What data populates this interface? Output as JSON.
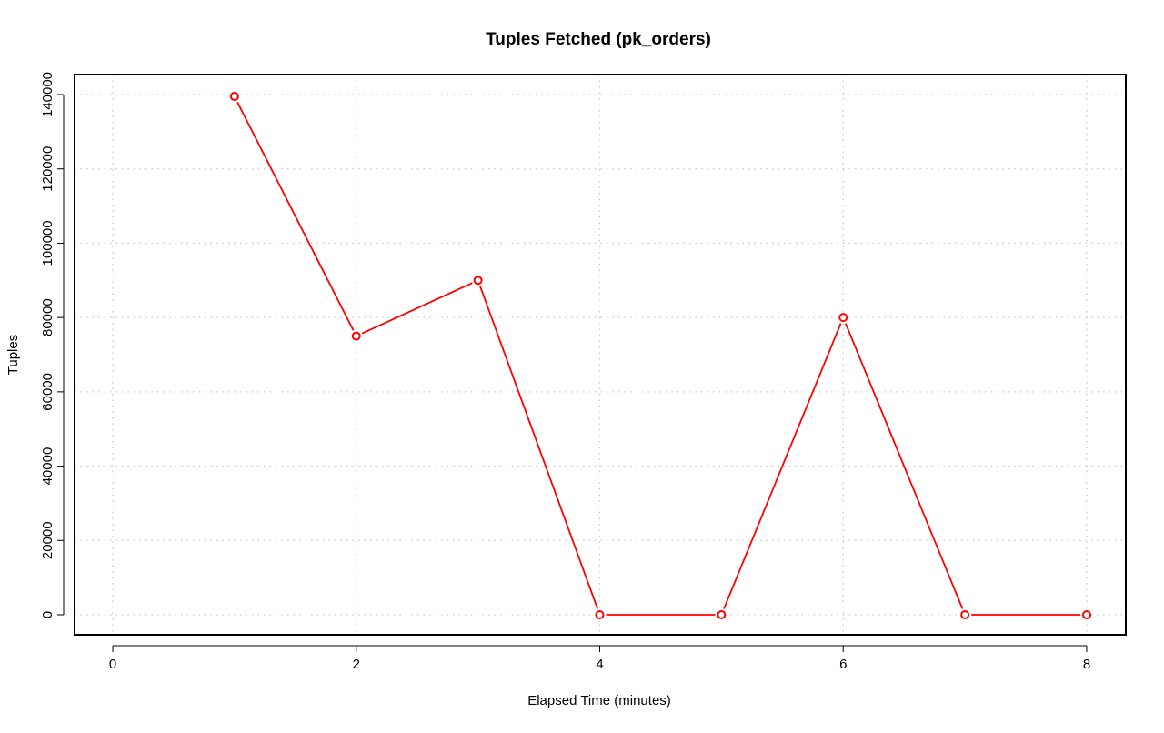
{
  "chart_data": {
    "type": "line",
    "title": "Tuples Fetched (pk_orders)",
    "xlabel": "Elapsed Time (minutes)",
    "ylabel": "Tuples",
    "x": [
      1,
      2,
      3,
      4,
      5,
      6,
      7,
      8
    ],
    "series": [
      {
        "values": [
          139500,
          75000,
          90000,
          0,
          0,
          80000,
          0,
          0
        ],
        "color": "#ff0000",
        "marker": "open-circle"
      }
    ],
    "xlim": [
      0,
      8
    ],
    "ylim": [
      0,
      140000
    ],
    "x_ticks": [
      0,
      2,
      4,
      6,
      8
    ],
    "y_ticks": [
      0,
      20000,
      40000,
      60000,
      80000,
      100000,
      120000,
      140000
    ],
    "x_tick_labels": [
      "0",
      "2",
      "4",
      "6",
      "8"
    ],
    "y_tick_labels": [
      "0",
      "20000",
      "40000",
      "60000",
      "80000",
      "100000",
      "120000",
      "140000"
    ],
    "grid": true
  }
}
